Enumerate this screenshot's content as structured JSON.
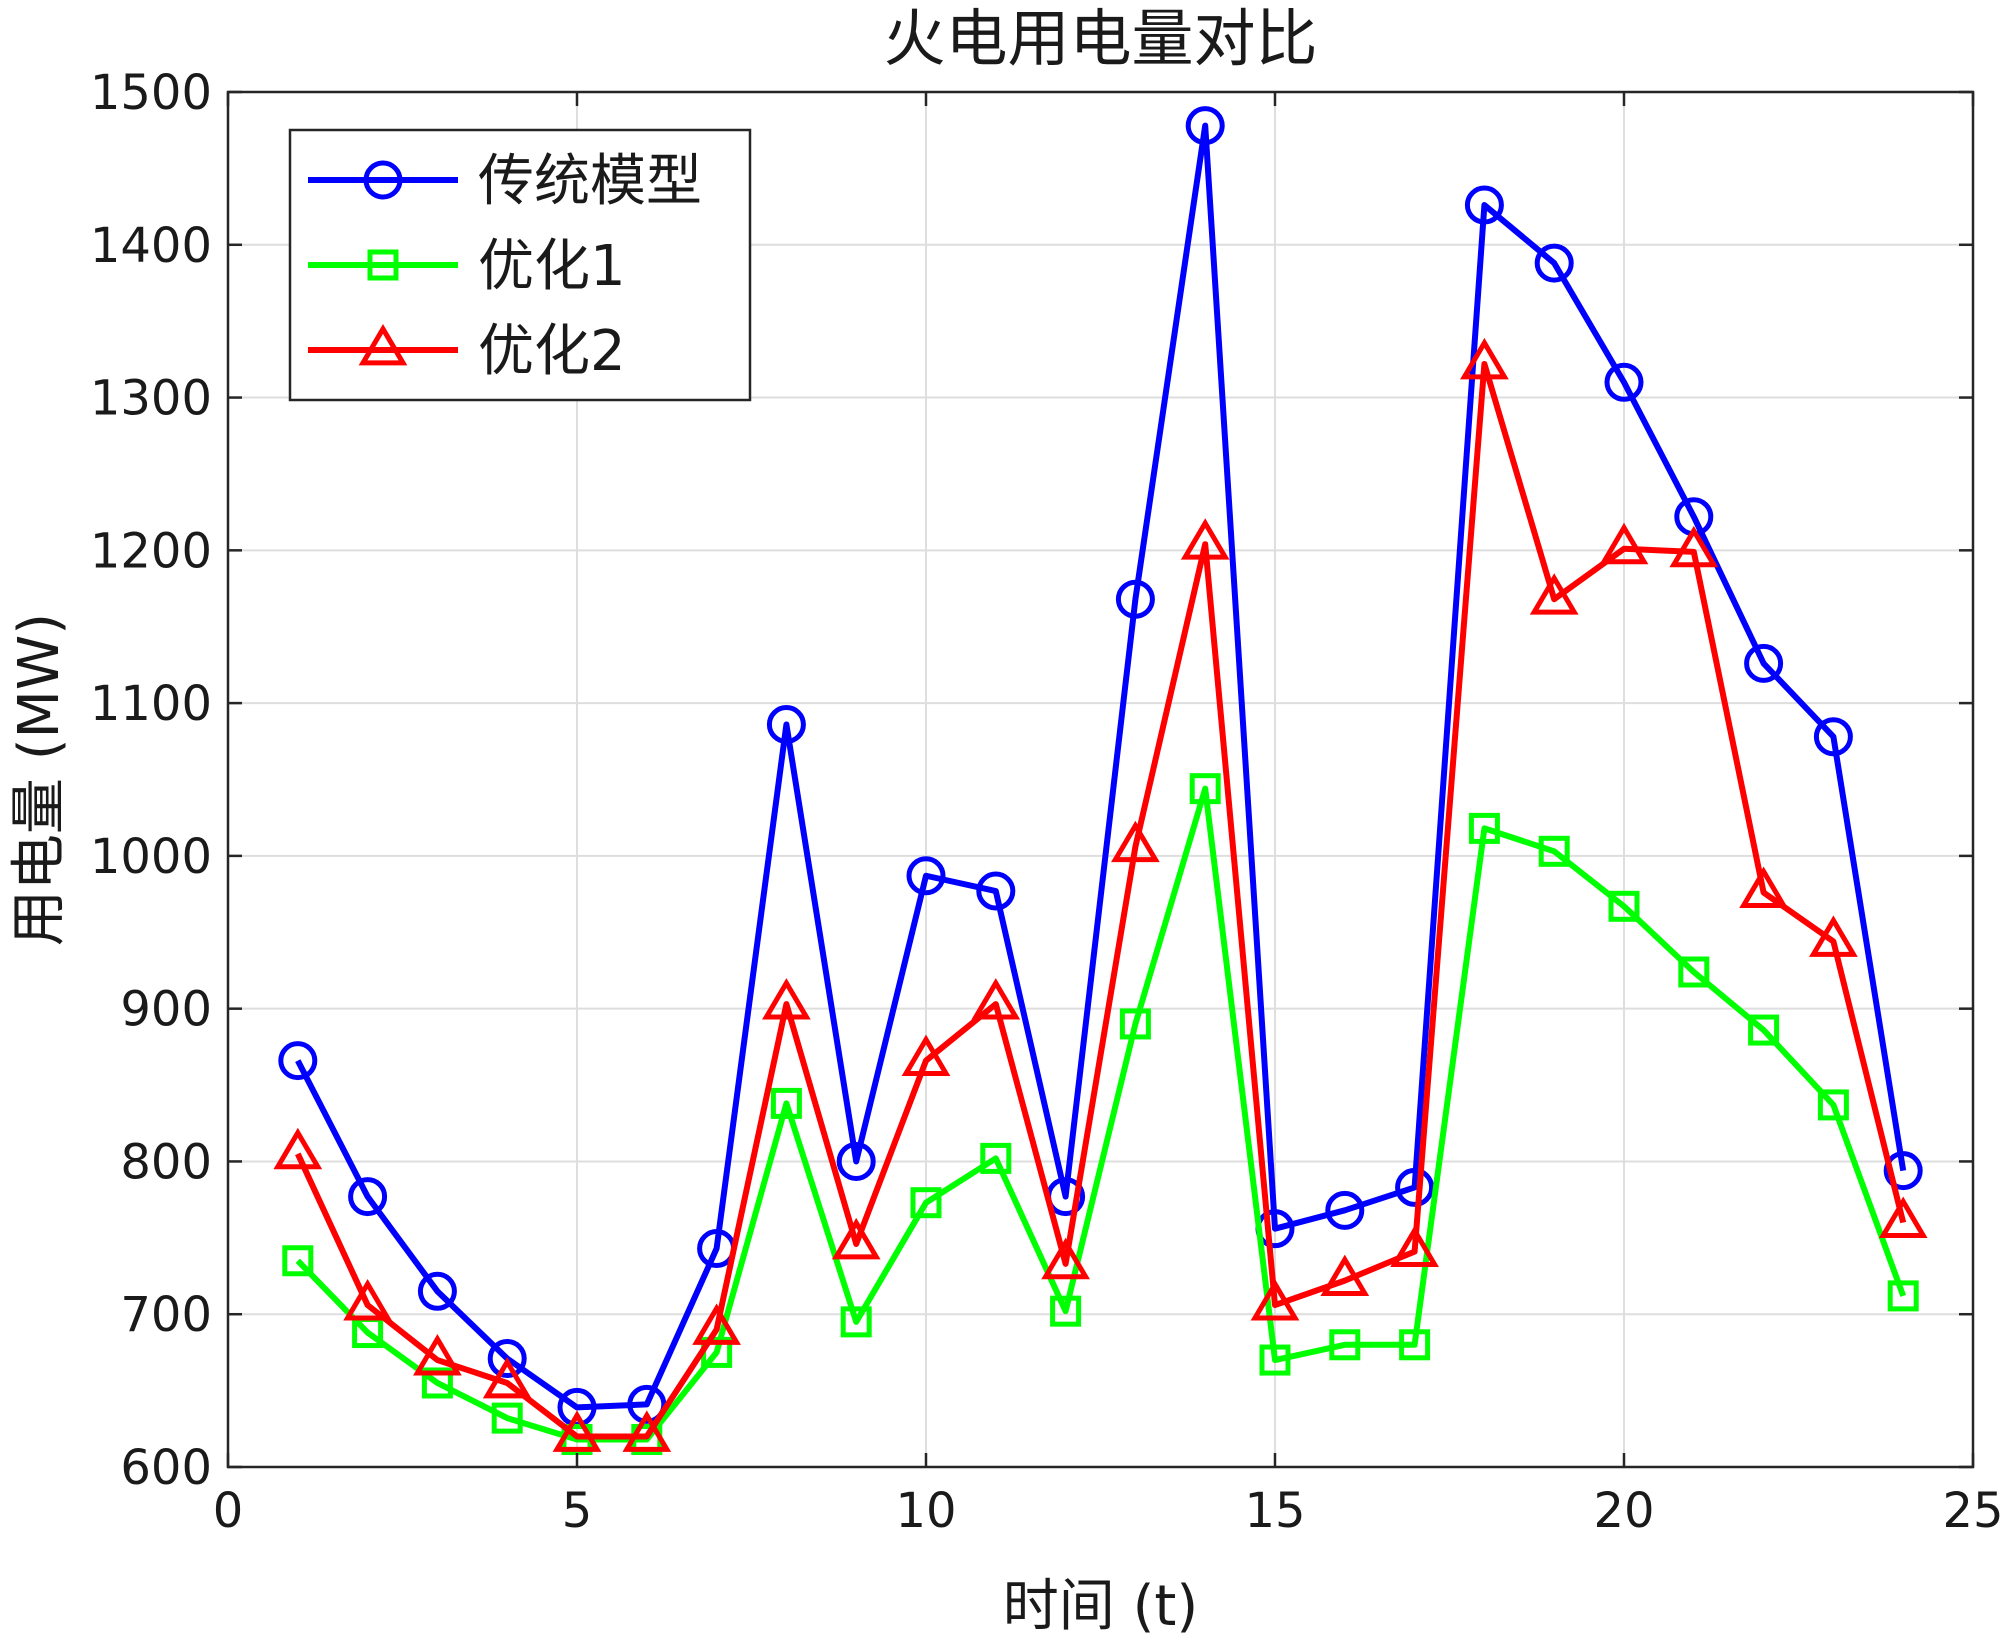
{
  "chart_data": {
    "type": "line",
    "title": "火电用电量对比",
    "xlabel": "时间 (t)",
    "ylabel": "用电量 (MW)",
    "xlim": [
      0,
      25
    ],
    "ylim": [
      600,
      1500
    ],
    "x_ticks": [
      0,
      5,
      10,
      15,
      20,
      25
    ],
    "y_ticks": [
      600,
      700,
      800,
      900,
      1000,
      1100,
      1200,
      1300,
      1400,
      1500
    ],
    "grid": true,
    "legend_position": "top-left",
    "x": [
      1,
      2,
      3,
      4,
      5,
      6,
      7,
      8,
      9,
      10,
      11,
      12,
      13,
      14,
      15,
      16,
      17,
      18,
      19,
      20,
      21,
      22,
      23,
      24
    ],
    "series": [
      {
        "name": "传统模型",
        "color": "#0000ff",
        "marker": "circle",
        "values": [
          866,
          777,
          715,
          671,
          639,
          641,
          743,
          1086,
          800,
          987,
          977,
          777,
          1168,
          1478,
          756,
          768,
          783,
          1426,
          1388,
          1310,
          1222,
          1126,
          1078,
          794
        ]
      },
      {
        "name": "优化1",
        "color": "#00ff00",
        "marker": "square",
        "values": [
          735,
          688,
          655,
          632,
          618,
          618,
          675,
          838,
          695,
          773,
          802,
          702,
          890,
          1044,
          670,
          680,
          680,
          1018,
          1003,
          967,
          924,
          886,
          837,
          712
        ]
      },
      {
        "name": "优化2",
        "color": "#ff0000",
        "marker": "triangle",
        "values": [
          805,
          706,
          670,
          655,
          620,
          620,
          690,
          903,
          746,
          866,
          903,
          733,
          1006,
          1204,
          706,
          722,
          741,
          1322,
          1168,
          1201,
          1199,
          976,
          944,
          760
        ]
      }
    ]
  }
}
